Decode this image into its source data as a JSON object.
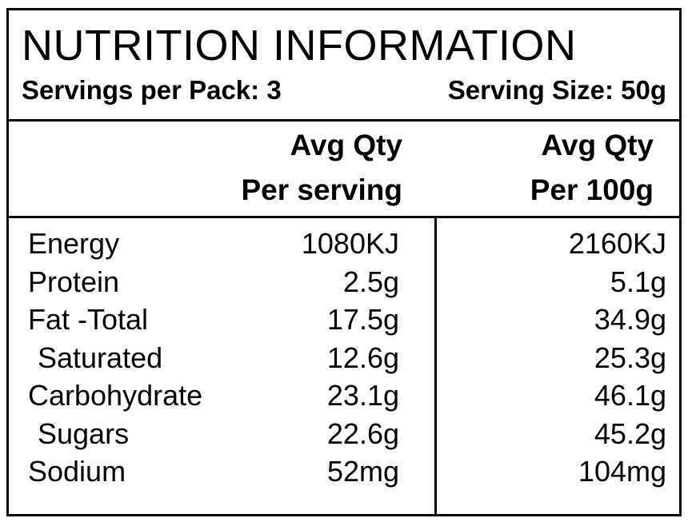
{
  "header": {
    "title": "NUTRITION INFORMATION",
    "servings_per_pack": "Servings per Pack: 3",
    "serving_size": "Serving Size: 50g"
  },
  "columns": {
    "per_serving_line1": "Avg Qty",
    "per_serving_line2": "Per serving",
    "per_100g_line1": "Avg Qty",
    "per_100g_line2": "Per 100g"
  },
  "rows": [
    {
      "name": "Energy",
      "per_serving": "1080KJ",
      "per_100g": "2160KJ",
      "indent": false
    },
    {
      "name": "Protein",
      "per_serving": "2.5g",
      "per_100g": "5.1g",
      "indent": false
    },
    {
      "name": "Fat -Total",
      "per_serving": "17.5g",
      "per_100g": "34.9g",
      "indent": false
    },
    {
      "name": "Saturated",
      "per_serving": "12.6g",
      "per_100g": "25.3g",
      "indent": true
    },
    {
      "name": "Carbohydrate",
      "per_serving": "23.1g",
      "per_100g": "46.1g",
      "indent": false
    },
    {
      "name": "Sugars",
      "per_serving": "22.6g",
      "per_100g": "45.2g",
      "indent": true
    },
    {
      "name": "Sodium",
      "per_serving": "52mg",
      "per_100g": "104mg",
      "indent": false
    }
  ]
}
